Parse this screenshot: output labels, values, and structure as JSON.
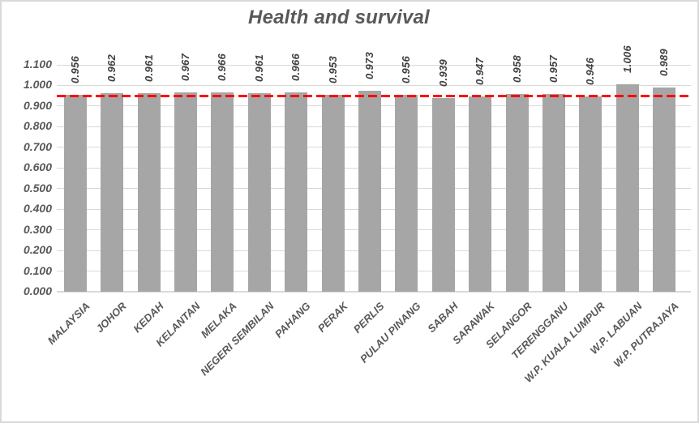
{
  "chart_data": {
    "type": "bar",
    "title": "Health and survival",
    "categories": [
      "MALAYSIA",
      "JOHOR",
      "KEDAH",
      "KELANTAN",
      "MELAKA",
      "NEGERI SEMBILAN",
      "PAHANG",
      "PERAK",
      "PERLIS",
      "PULAU PINANG",
      "SABAH",
      "SARAWAK",
      "SELANGOR",
      "TERENGGANU",
      "W.P. KUALA LUMPUR",
      "W.P. LABUAN",
      "W.P. PUTRAJAYA"
    ],
    "values": [
      0.956,
      0.962,
      0.961,
      0.967,
      0.966,
      0.961,
      0.966,
      0.953,
      0.973,
      0.956,
      0.939,
      0.947,
      0.958,
      0.957,
      0.946,
      1.006,
      0.989
    ],
    "value_labels": [
      "0.956",
      "0.962",
      "0.961",
      "0.967",
      "0.966",
      "0.961",
      "0.966",
      "0.953",
      "0.973",
      "0.956",
      "0.939",
      "0.947",
      "0.958",
      "0.957",
      "0.946",
      "1.006",
      "0.989"
    ],
    "ytick_labels": [
      "0.000",
      "0.100",
      "0.200",
      "0.300",
      "0.400",
      "0.500",
      "0.600",
      "0.700",
      "0.800",
      "0.900",
      "1.000",
      "1.100"
    ],
    "ylim": [
      0,
      1.1
    ],
    "grid": true,
    "legend": "none",
    "xlabel": "",
    "ylabel": "",
    "reference_line": {
      "value": 0.95,
      "style": "dashed",
      "color": "#FF0000"
    },
    "colors": {
      "bar": "#A6A6A6",
      "gridline": "#D9D9D9",
      "axis_line": "#D9D9D9",
      "axis_text": "#595959",
      "title_text": "#595959",
      "data_label_text": "#404040",
      "reference": "#FF0000",
      "border": "#D9D9D9",
      "background": "#FFFFFF"
    }
  }
}
